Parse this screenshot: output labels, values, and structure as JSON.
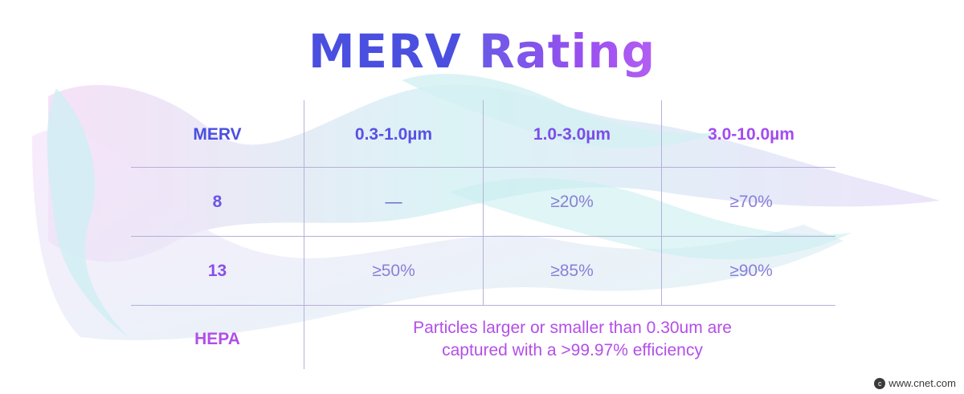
{
  "title": {
    "part1": "MERV",
    "part2": "Rating"
  },
  "table": {
    "headers": [
      "MERV",
      "0.3-1.0µm",
      "1.0-3.0µm",
      "3.0-10.0µm"
    ],
    "rows": [
      {
        "label": "8",
        "values": [
          "—",
          "≥20%",
          "≥70%"
        ]
      },
      {
        "label": "13",
        "values": [
          "≥50%",
          "≥85%",
          "≥90%"
        ]
      },
      {
        "label": "HEPA",
        "note_line1": "Particles larger or smaller than 0.30um are",
        "note_line2": "captured with a >99.97% efficiency"
      }
    ]
  },
  "credit": {
    "text": "www.cnet.com",
    "icon": "cnet-logo-icon"
  },
  "colors": {
    "header_blue": "#4b4fe0",
    "header_violet": "#7c4de8",
    "header_purple": "#a24cf0",
    "value_text": "#8a7fd8",
    "hepa_text": "#b34fe8",
    "grid_line": "#b7afd8"
  }
}
